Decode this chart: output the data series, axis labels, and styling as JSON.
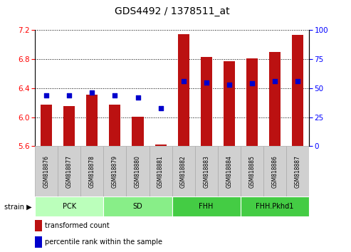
{
  "title": "GDS4492 / 1378511_at",
  "samples": [
    "GSM818876",
    "GSM818877",
    "GSM818878",
    "GSM818879",
    "GSM818880",
    "GSM818881",
    "GSM818882",
    "GSM818883",
    "GSM818884",
    "GSM818885",
    "GSM818886",
    "GSM818887"
  ],
  "transformed_count": [
    6.17,
    6.15,
    6.31,
    6.17,
    6.01,
    5.62,
    7.15,
    6.83,
    6.77,
    6.81,
    6.9,
    7.14
  ],
  "percentile_rank": [
    44,
    44,
    46,
    44,
    42,
    33,
    56,
    55,
    53,
    54,
    56,
    56
  ],
  "ylim_left": [
    5.6,
    7.2
  ],
  "ylim_right": [
    0,
    100
  ],
  "yticks_left": [
    5.6,
    6.0,
    6.4,
    6.8,
    7.2
  ],
  "yticks_right": [
    0,
    25,
    50,
    75,
    100
  ],
  "bar_color": "#bb1111",
  "dot_color": "#0000cc",
  "group_defs": [
    {
      "label": "PCK",
      "start": 0,
      "end": 2,
      "color": "#bbffbb"
    },
    {
      "label": "SD",
      "start": 3,
      "end": 5,
      "color": "#88ee88"
    },
    {
      "label": "FHH",
      "start": 6,
      "end": 8,
      "color": "#44cc44"
    },
    {
      "label": "FHH.Pkhd1",
      "start": 9,
      "end": 11,
      "color": "#44cc44"
    }
  ],
  "strain_label": "strain",
  "legend_bar_label": "transformed count",
  "legend_dot_label": "percentile rank within the sample",
  "title_fontsize": 10,
  "tick_fontsize": 7.5,
  "sample_fontsize": 5.5,
  "group_fontsize": 7,
  "legend_fontsize": 7
}
